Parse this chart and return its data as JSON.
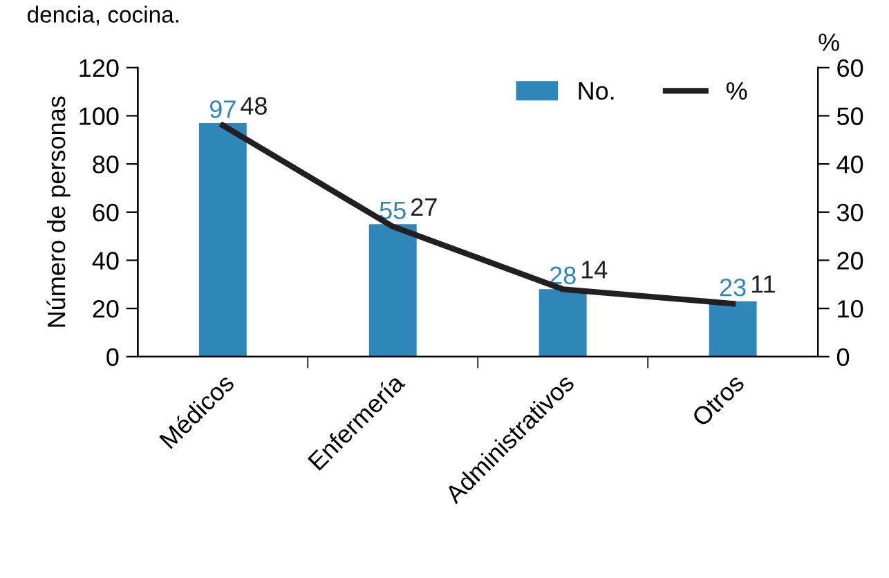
{
  "chart_data": {
    "type": "bar",
    "ylabel": "Número de personas",
    "y2label": "%",
    "annotations": [
      "dencia, cocina."
    ],
    "categories": [
      "Médicos",
      "Enfermería",
      "Administrativos",
      "Otros"
    ],
    "series": [
      {
        "name": "No.",
        "color": "#2e86b9",
        "values": [
          97,
          55,
          28,
          23
        ]
      },
      {
        "name": "%",
        "type": "line",
        "axis": "y2",
        "color": "#231f20",
        "values": [
          48,
          27,
          14,
          11
        ]
      }
    ],
    "ylim": [
      0,
      120
    ],
    "yticks": [
      0,
      20,
      40,
      60,
      80,
      100,
      120
    ],
    "y2lim": [
      0,
      60
    ],
    "y2ticks": [
      0,
      10,
      20,
      30,
      40,
      50,
      60
    ],
    "data_labels": true,
    "legend": "top right",
    "grid": false,
    "marker": "none",
    "line_style": "solid"
  }
}
